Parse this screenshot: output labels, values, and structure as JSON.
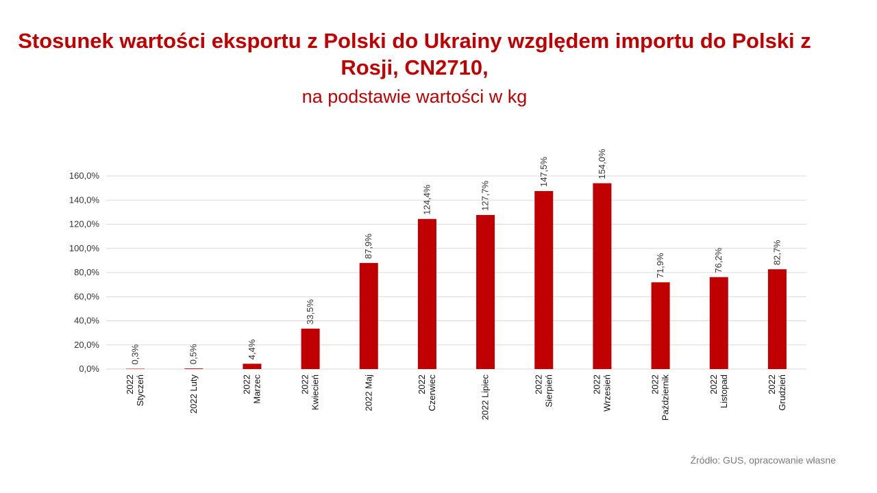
{
  "title": "Stosunek wartości eksportu z Polski do Ukrainy względem importu do Polski z Rosji, CN2710,",
  "subtitle": "na podstawie wartości w kg",
  "source": "Źródło: GUS, opracowanie własne",
  "colors": {
    "bar": "#c00000",
    "title": "#c00000",
    "grid": "#d9d9d9"
  },
  "chart_data": {
    "type": "bar",
    "categories": [
      [
        "2022",
        "Styczeń"
      ],
      [
        "2022 Luty"
      ],
      [
        "2022",
        "Marzec"
      ],
      [
        "2022",
        "Kwiecień"
      ],
      [
        "2022 Maj"
      ],
      [
        "2022",
        "Czerwiec"
      ],
      [
        "2022 Lipiec"
      ],
      [
        "2022",
        "Sierpień"
      ],
      [
        "2022",
        "Wrzesień"
      ],
      [
        "2022",
        "Październik"
      ],
      [
        "2022",
        "Listopad"
      ],
      [
        "2022",
        "Grudzień"
      ]
    ],
    "values": [
      0.3,
      0.5,
      4.4,
      33.5,
      87.9,
      124.4,
      127.7,
      147.5,
      154.0,
      71.9,
      76.2,
      82.7
    ],
    "data_labels": [
      "0,3%",
      "0,5%",
      "4,4%",
      "33,5%",
      "87,9%",
      "124,4%",
      "127,7%",
      "147,5%",
      "154,0%",
      "71,9%",
      "76,2%",
      "82,7%"
    ],
    "yticks": [
      "0,0%",
      "20,0%",
      "40,0%",
      "60,0%",
      "80,0%",
      "100,0%",
      "120,0%",
      "140,0%",
      "160,0%"
    ],
    "ylim": [
      0,
      160
    ],
    "grid": true,
    "legend": "none"
  }
}
